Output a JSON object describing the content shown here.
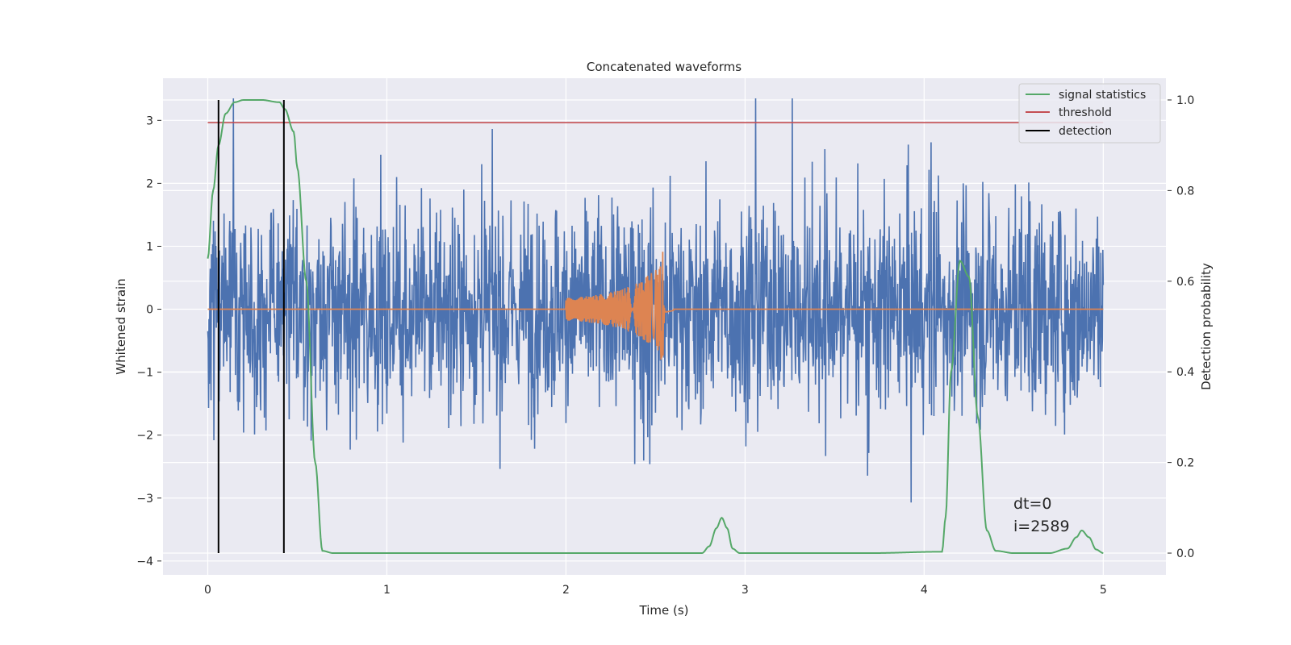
{
  "chart_data": {
    "type": "line",
    "title": "Concatenated waveforms",
    "xlabel": "Time (s)",
    "ylabel": "Whitened strain",
    "y2label": "Detection probability",
    "xlim": [
      -0.25,
      5.35
    ],
    "ylim": [
      -4.22,
      3.67
    ],
    "y2lim": [
      -0.048,
      1.048
    ],
    "xticks": [
      "0",
      "1",
      "2",
      "3",
      "4",
      "5"
    ],
    "yticks": [
      "−4",
      "−3",
      "−2",
      "−1",
      "0",
      "1",
      "2",
      "3"
    ],
    "y2ticks": [
      "0.0",
      "0.2",
      "0.4",
      "0.6",
      "0.8",
      "1.0"
    ],
    "grid": true,
    "legend_position": "top-right",
    "legend": [
      {
        "label": "signal statistics",
        "color": "#55a868"
      },
      {
        "label": "threshold",
        "color": "#c44e52"
      },
      {
        "label": "detection",
        "color": "#000000"
      }
    ],
    "series": [
      {
        "role": "strain",
        "color": "#4c72b0",
        "axis": "left",
        "description": "noisy whitened strain, x from 0 to 5, roughly within [-3.5, 3.3]",
        "range": [
          0,
          5
        ]
      },
      {
        "role": "template",
        "color": "#dd8452",
        "axis": "left",
        "x": [
          0,
          1.99,
          2.0,
          2.1,
          2.2,
          2.3,
          2.4,
          2.5,
          2.54,
          2.55,
          2.6,
          5.0
        ],
        "amplitude": [
          0,
          0,
          0.18,
          0.2,
          0.24,
          0.3,
          0.42,
          0.62,
          0.95,
          0.05,
          0.02,
          0
        ]
      },
      {
        "role": "signal statistics",
        "color": "#55a868",
        "axis": "right",
        "x": [
          0,
          0.03,
          0.06,
          0.1,
          0.15,
          0.2,
          0.3,
          0.4,
          0.43,
          0.48,
          0.5,
          0.55,
          0.6,
          0.64,
          0.7,
          1.0,
          2.0,
          2.5,
          2.76,
          2.8,
          2.84,
          2.87,
          2.9,
          2.93,
          2.97,
          3.2,
          3.7,
          4.1,
          4.12,
          4.15,
          4.2,
          4.25,
          4.3,
          4.35,
          4.4,
          4.5,
          4.7,
          4.8,
          4.85,
          4.88,
          4.92,
          4.96,
          5.0
        ],
        "y": [
          0.65,
          0.8,
          0.9,
          0.97,
          0.995,
          1.0,
          1.0,
          0.995,
          0.98,
          0.93,
          0.85,
          0.6,
          0.2,
          0.005,
          0.0,
          0.0,
          0.0,
          0.0,
          0.0,
          0.015,
          0.055,
          0.078,
          0.055,
          0.01,
          0.0,
          0.0,
          0.0,
          0.003,
          0.08,
          0.4,
          0.645,
          0.61,
          0.3,
          0.05,
          0.005,
          0.0,
          0.0,
          0.01,
          0.035,
          0.05,
          0.035,
          0.008,
          0.0
        ]
      },
      {
        "role": "threshold",
        "color": "#c44e52",
        "axis": "right",
        "x": [
          0,
          5
        ],
        "y": [
          0.95,
          0.95
        ]
      },
      {
        "role": "detection",
        "color": "#000000",
        "axis": "right",
        "x": [
          0.06,
          0.425
        ],
        "y": [
          0.0,
          1.0
        ]
      }
    ],
    "annotation": {
      "line1": "dt=0",
      "line2": "i=2589",
      "x": 4.5,
      "y": -3.3
    }
  }
}
